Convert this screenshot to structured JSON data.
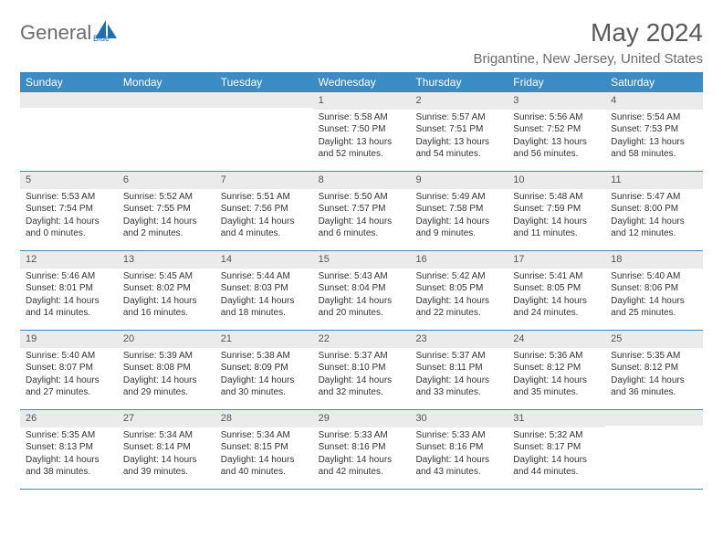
{
  "logo": {
    "text": "General",
    "brand_color": "#1f6fb0"
  },
  "title": {
    "month": "May 2024",
    "location": "Brigantine, New Jersey, United States"
  },
  "colors": {
    "header_bg": "#3b8bc4",
    "header_text": "#ffffff",
    "daynum_bg": "#ebebeb",
    "row_border": "#3b8bc4",
    "body_text": "#333333",
    "title_text": "#5a5a5a",
    "logo_text": "#6b6b6b"
  },
  "day_names": [
    "Sunday",
    "Monday",
    "Tuesday",
    "Wednesday",
    "Thursday",
    "Friday",
    "Saturday"
  ],
  "weeks": [
    [
      {
        "n": "",
        "sr": "",
        "ss": "",
        "dl": ""
      },
      {
        "n": "",
        "sr": "",
        "ss": "",
        "dl": ""
      },
      {
        "n": "",
        "sr": "",
        "ss": "",
        "dl": ""
      },
      {
        "n": "1",
        "sr": "Sunrise: 5:58 AM",
        "ss": "Sunset: 7:50 PM",
        "dl": "Daylight: 13 hours and 52 minutes."
      },
      {
        "n": "2",
        "sr": "Sunrise: 5:57 AM",
        "ss": "Sunset: 7:51 PM",
        "dl": "Daylight: 13 hours and 54 minutes."
      },
      {
        "n": "3",
        "sr": "Sunrise: 5:56 AM",
        "ss": "Sunset: 7:52 PM",
        "dl": "Daylight: 13 hours and 56 minutes."
      },
      {
        "n": "4",
        "sr": "Sunrise: 5:54 AM",
        "ss": "Sunset: 7:53 PM",
        "dl": "Daylight: 13 hours and 58 minutes."
      }
    ],
    [
      {
        "n": "5",
        "sr": "Sunrise: 5:53 AM",
        "ss": "Sunset: 7:54 PM",
        "dl": "Daylight: 14 hours and 0 minutes."
      },
      {
        "n": "6",
        "sr": "Sunrise: 5:52 AM",
        "ss": "Sunset: 7:55 PM",
        "dl": "Daylight: 14 hours and 2 minutes."
      },
      {
        "n": "7",
        "sr": "Sunrise: 5:51 AM",
        "ss": "Sunset: 7:56 PM",
        "dl": "Daylight: 14 hours and 4 minutes."
      },
      {
        "n": "8",
        "sr": "Sunrise: 5:50 AM",
        "ss": "Sunset: 7:57 PM",
        "dl": "Daylight: 14 hours and 6 minutes."
      },
      {
        "n": "9",
        "sr": "Sunrise: 5:49 AM",
        "ss": "Sunset: 7:58 PM",
        "dl": "Daylight: 14 hours and 9 minutes."
      },
      {
        "n": "10",
        "sr": "Sunrise: 5:48 AM",
        "ss": "Sunset: 7:59 PM",
        "dl": "Daylight: 14 hours and 11 minutes."
      },
      {
        "n": "11",
        "sr": "Sunrise: 5:47 AM",
        "ss": "Sunset: 8:00 PM",
        "dl": "Daylight: 14 hours and 12 minutes."
      }
    ],
    [
      {
        "n": "12",
        "sr": "Sunrise: 5:46 AM",
        "ss": "Sunset: 8:01 PM",
        "dl": "Daylight: 14 hours and 14 minutes."
      },
      {
        "n": "13",
        "sr": "Sunrise: 5:45 AM",
        "ss": "Sunset: 8:02 PM",
        "dl": "Daylight: 14 hours and 16 minutes."
      },
      {
        "n": "14",
        "sr": "Sunrise: 5:44 AM",
        "ss": "Sunset: 8:03 PM",
        "dl": "Daylight: 14 hours and 18 minutes."
      },
      {
        "n": "15",
        "sr": "Sunrise: 5:43 AM",
        "ss": "Sunset: 8:04 PM",
        "dl": "Daylight: 14 hours and 20 minutes."
      },
      {
        "n": "16",
        "sr": "Sunrise: 5:42 AM",
        "ss": "Sunset: 8:05 PM",
        "dl": "Daylight: 14 hours and 22 minutes."
      },
      {
        "n": "17",
        "sr": "Sunrise: 5:41 AM",
        "ss": "Sunset: 8:05 PM",
        "dl": "Daylight: 14 hours and 24 minutes."
      },
      {
        "n": "18",
        "sr": "Sunrise: 5:40 AM",
        "ss": "Sunset: 8:06 PM",
        "dl": "Daylight: 14 hours and 25 minutes."
      }
    ],
    [
      {
        "n": "19",
        "sr": "Sunrise: 5:40 AM",
        "ss": "Sunset: 8:07 PM",
        "dl": "Daylight: 14 hours and 27 minutes."
      },
      {
        "n": "20",
        "sr": "Sunrise: 5:39 AM",
        "ss": "Sunset: 8:08 PM",
        "dl": "Daylight: 14 hours and 29 minutes."
      },
      {
        "n": "21",
        "sr": "Sunrise: 5:38 AM",
        "ss": "Sunset: 8:09 PM",
        "dl": "Daylight: 14 hours and 30 minutes."
      },
      {
        "n": "22",
        "sr": "Sunrise: 5:37 AM",
        "ss": "Sunset: 8:10 PM",
        "dl": "Daylight: 14 hours and 32 minutes."
      },
      {
        "n": "23",
        "sr": "Sunrise: 5:37 AM",
        "ss": "Sunset: 8:11 PM",
        "dl": "Daylight: 14 hours and 33 minutes."
      },
      {
        "n": "24",
        "sr": "Sunrise: 5:36 AM",
        "ss": "Sunset: 8:12 PM",
        "dl": "Daylight: 14 hours and 35 minutes."
      },
      {
        "n": "25",
        "sr": "Sunrise: 5:35 AM",
        "ss": "Sunset: 8:12 PM",
        "dl": "Daylight: 14 hours and 36 minutes."
      }
    ],
    [
      {
        "n": "26",
        "sr": "Sunrise: 5:35 AM",
        "ss": "Sunset: 8:13 PM",
        "dl": "Daylight: 14 hours and 38 minutes."
      },
      {
        "n": "27",
        "sr": "Sunrise: 5:34 AM",
        "ss": "Sunset: 8:14 PM",
        "dl": "Daylight: 14 hours and 39 minutes."
      },
      {
        "n": "28",
        "sr": "Sunrise: 5:34 AM",
        "ss": "Sunset: 8:15 PM",
        "dl": "Daylight: 14 hours and 40 minutes."
      },
      {
        "n": "29",
        "sr": "Sunrise: 5:33 AM",
        "ss": "Sunset: 8:16 PM",
        "dl": "Daylight: 14 hours and 42 minutes."
      },
      {
        "n": "30",
        "sr": "Sunrise: 5:33 AM",
        "ss": "Sunset: 8:16 PM",
        "dl": "Daylight: 14 hours and 43 minutes."
      },
      {
        "n": "31",
        "sr": "Sunrise: 5:32 AM",
        "ss": "Sunset: 8:17 PM",
        "dl": "Daylight: 14 hours and 44 minutes."
      },
      {
        "n": "",
        "sr": "",
        "ss": "",
        "dl": ""
      }
    ]
  ]
}
